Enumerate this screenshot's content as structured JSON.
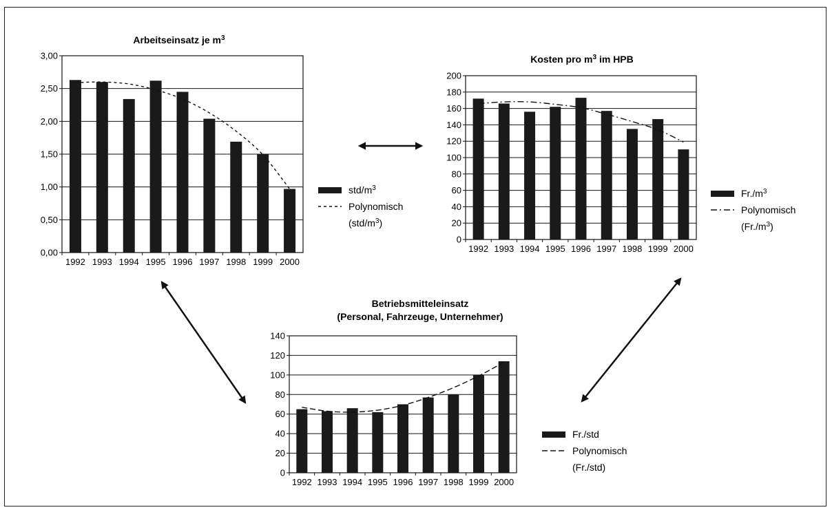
{
  "chart_data": [
    {
      "type": "bar",
      "title": "Arbeitseinsatz je m",
      "title_sup": "3",
      "categories": [
        "1992",
        "1993",
        "1994",
        "1995",
        "1996",
        "1997",
        "1998",
        "1999",
        "2000"
      ],
      "series": [
        {
          "name": "std/m",
          "name_sup": "3",
          "values": [
            2.63,
            2.6,
            2.34,
            2.62,
            2.45,
            2.04,
            1.69,
            1.5,
            0.97
          ]
        }
      ],
      "trend": {
        "name": "Polynomisch",
        "name_line2": "(std/m",
        "name_line2_sup": "3",
        "name_line2_end": ")",
        "values": [
          2.59,
          2.6,
          2.57,
          2.48,
          2.34,
          2.13,
          1.85,
          1.49,
          0.97
        ]
      },
      "ylim": [
        0,
        3
      ],
      "yticks": [
        0,
        0.5,
        1,
        1.5,
        2,
        2.5,
        3
      ],
      "ytick_labels": [
        "0,00",
        "0,50",
        "1,00",
        "1,50",
        "2,00",
        "2,50",
        "3,00"
      ],
      "grid": true,
      "legend": "right"
    },
    {
      "type": "bar",
      "title": "Kosten pro m",
      "title_sup": "3",
      "title_end": " im HPB",
      "categories": [
        "1992",
        "1993",
        "1994",
        "1995",
        "1996",
        "1997",
        "1998",
        "1999",
        "2000"
      ],
      "series": [
        {
          "name": "Fr./m",
          "name_sup": "3",
          "values": [
            172,
            166,
            156,
            162,
            173,
            157,
            135,
            147,
            110
          ]
        }
      ],
      "trend": {
        "name": "Polynomisch",
        "name_line2": "(Fr./m",
        "name_line2_sup": "3",
        "name_line2_end": ")",
        "values": [
          166,
          168,
          168,
          165,
          161,
          153,
          144,
          134,
          119
        ]
      },
      "ylim": [
        0,
        200
      ],
      "yticks": [
        0,
        20,
        40,
        60,
        80,
        100,
        120,
        140,
        160,
        180,
        200
      ],
      "ytick_labels": [
        "0",
        "20",
        "40",
        "60",
        "80",
        "100",
        "120",
        "140",
        "160",
        "180",
        "200"
      ],
      "grid": true,
      "legend": "right"
    },
    {
      "type": "bar",
      "title": "Betriebsmitteleinsatz",
      "subtitle": "(Personal, Fahrzeuge, Unternehmer)",
      "categories": [
        "1992",
        "1993",
        "1994",
        "1995",
        "1996",
        "1997",
        "1998",
        "1999",
        "2000"
      ],
      "series": [
        {
          "name": "Fr./std",
          "values": [
            65,
            63,
            66,
            62,
            70,
            77,
            80,
            100,
            114
          ]
        }
      ],
      "trend": {
        "name": "Polynomisch",
        "name_line2": "(Fr./std)",
        "values": [
          67,
          63,
          62,
          64,
          69,
          77,
          87,
          99,
          113
        ]
      },
      "ylim": [
        0,
        140
      ],
      "yticks": [
        0,
        20,
        40,
        60,
        80,
        100,
        120,
        140
      ],
      "ytick_labels": [
        "0",
        "20",
        "40",
        "60",
        "80",
        "100",
        "120",
        "140"
      ],
      "grid": true,
      "legend": "right"
    }
  ]
}
